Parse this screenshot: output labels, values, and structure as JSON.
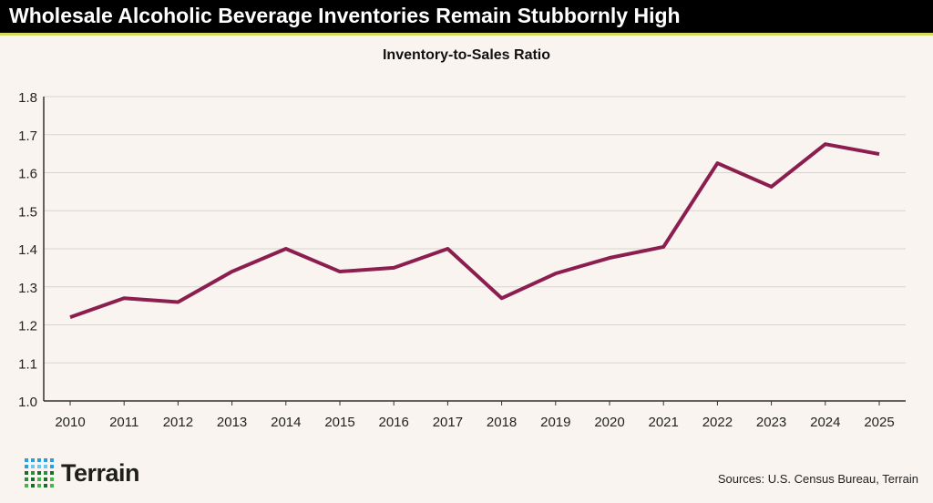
{
  "title": "Wholesale Alcoholic Beverage Inventories Remain Stubbornly High",
  "source": "Sources: U.S. Census Bureau, Terrain",
  "logo": "Terrain",
  "chart_data": {
    "type": "line",
    "title": "Inventory-to-Sales Ratio",
    "x": [
      "2010",
      "2011",
      "2012",
      "2013",
      "2014",
      "2015",
      "2016",
      "2017",
      "2018",
      "2019",
      "2020",
      "2021",
      "2022",
      "2023",
      "2024",
      "2025"
    ],
    "series": [
      {
        "values": [
          1.22,
          1.27,
          1.26,
          1.34,
          1.4,
          1.34,
          1.35,
          1.4,
          1.27,
          1.335,
          1.376,
          1.405,
          1.625,
          1.563,
          1.675,
          1.649
        ],
        "color": "#8b1e4f"
      }
    ],
    "yticks": [
      "1.0",
      "1.1",
      "1.2",
      "1.3",
      "1.4",
      "1.5",
      "1.6",
      "1.7",
      "1.8"
    ],
    "ylim": [
      1.0,
      1.8
    ],
    "grid": true
  }
}
